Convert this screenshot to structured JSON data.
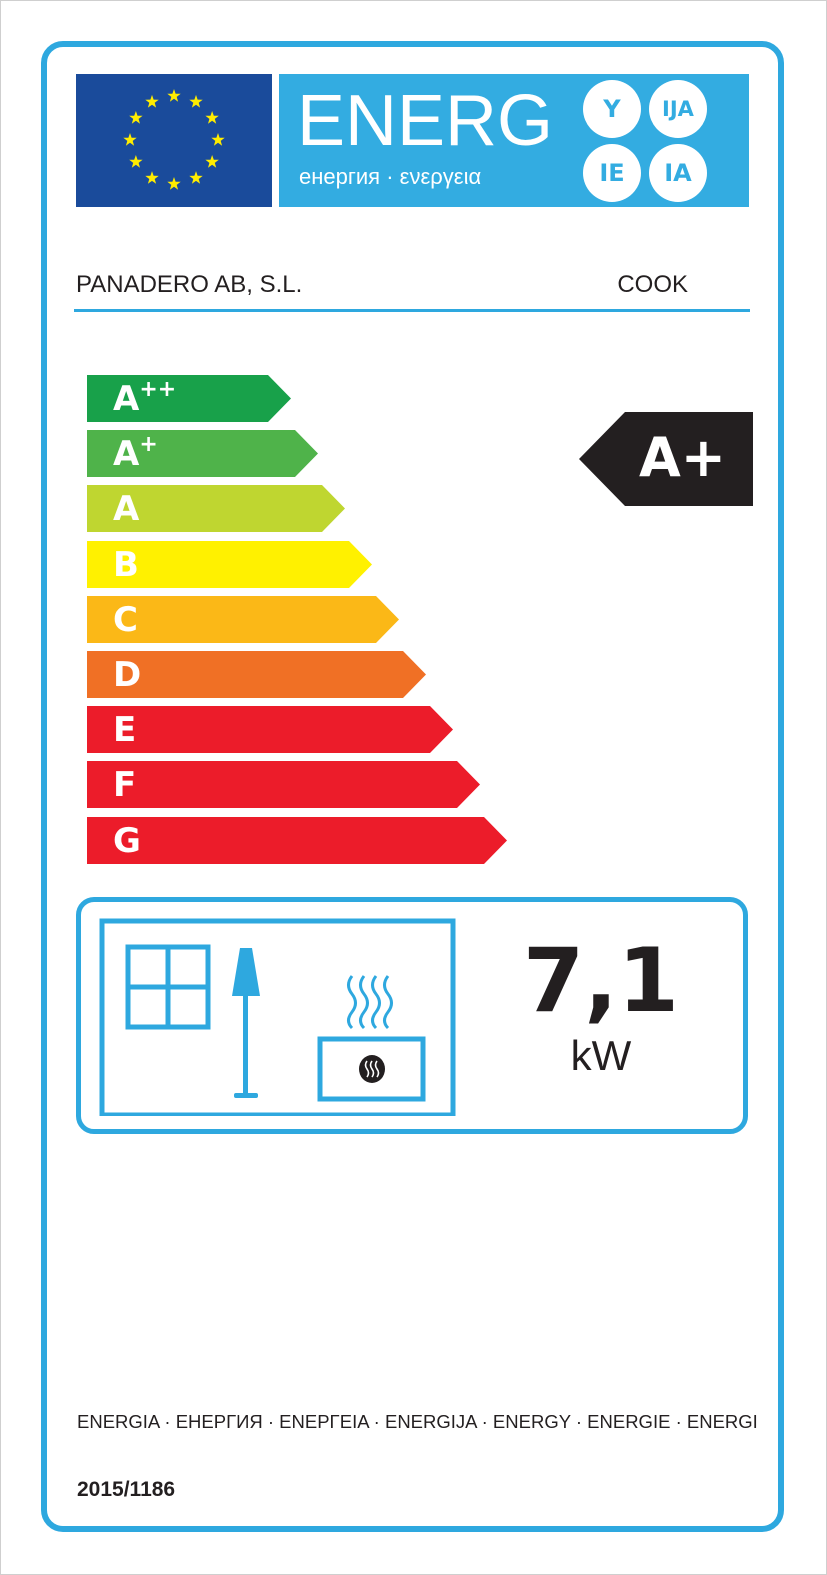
{
  "header": {
    "banner_title": "ENERG",
    "banner_subtitle": "енергия · ενεργεια",
    "suffixes": [
      "Y",
      "IJA",
      "IE",
      "IA"
    ],
    "flag_color": "#1a4b9b",
    "banner_color": "#33ace1"
  },
  "product": {
    "supplier": "PANADERO AB, S.L.",
    "model": "COOK"
  },
  "scale": {
    "classes": [
      {
        "letter": "A",
        "plus": "++",
        "color": "#18a14a"
      },
      {
        "letter": "A",
        "plus": "+",
        "color": "#4fb34a"
      },
      {
        "letter": "A",
        "plus": "",
        "color": "#bfd630"
      },
      {
        "letter": "B",
        "plus": "",
        "color": "#fff100"
      },
      {
        "letter": "C",
        "plus": "",
        "color": "#fbb817"
      },
      {
        "letter": "D",
        "plus": "",
        "color": "#f07025"
      },
      {
        "letter": "E",
        "plus": "",
        "color": "#ec1c2a"
      },
      {
        "letter": "F",
        "plus": "",
        "color": "#ec1c2a"
      },
      {
        "letter": "G",
        "plus": "",
        "color": "#ec1c2a"
      }
    ],
    "rating": "A+",
    "rating_color": "#231f20"
  },
  "output": {
    "icons": [
      "window-icon",
      "lamp-icon",
      "heater-icon"
    ],
    "value": "7,1",
    "unit": "kW"
  },
  "footer": {
    "languages": "ENERGIA · ЕНЕРГИЯ · ΕΝΕΡΓΕΙΑ · ENERGIJA · ENERGY · ENERGIE · ENERGI",
    "regulation": "2015/1186"
  },
  "accent_color": "#2ea8df"
}
